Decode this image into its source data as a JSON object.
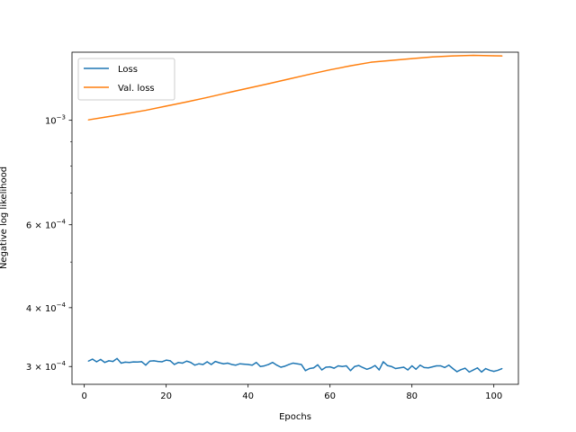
{
  "chart_data": {
    "type": "line",
    "title": "",
    "xlabel": "Epochs",
    "ylabel": "Negative log likelihood",
    "xlim": [
      -3,
      106
    ],
    "ylim": [
      0.000275,
      0.001395
    ],
    "yscale": "log",
    "grid": false,
    "legend_position": "top-left",
    "x_ticks": [
      0,
      20,
      40,
      60,
      80,
      100
    ],
    "x_tick_labels": [
      "0",
      "20",
      "40",
      "60",
      "80",
      "100"
    ],
    "y_major_ticks": [
      {
        "value": 0.0003,
        "mantissa": "3",
        "exponent": "−4"
      },
      {
        "value": 0.0004,
        "mantissa": "4",
        "exponent": "−4"
      },
      {
        "value": 0.0006,
        "mantissa": "6",
        "exponent": "−4"
      },
      {
        "value": 0.001,
        "base": "10",
        "exponent": "−3"
      }
    ],
    "y_minor_ticks": [
      0.0005,
      0.0007,
      0.0008,
      0.0009
    ],
    "series": [
      {
        "name": "Loss",
        "color": "#1f77b4",
        "x": [
          1,
          2,
          3,
          4,
          5,
          6,
          7,
          8,
          9,
          10,
          11,
          12,
          13,
          14,
          15,
          16,
          17,
          18,
          19,
          20,
          21,
          22,
          23,
          24,
          25,
          26,
          27,
          28,
          29,
          30,
          31,
          32,
          33,
          34,
          35,
          36,
          37,
          38,
          39,
          40,
          41,
          42,
          43,
          44,
          45,
          46,
          47,
          48,
          49,
          50,
          51,
          52,
          53,
          54,
          55,
          56,
          57,
          58,
          59,
          60,
          61,
          62,
          63,
          64,
          65,
          66,
          67,
          68,
          69,
          70,
          71,
          72,
          73,
          74,
          75,
          76,
          77,
          78,
          79,
          80,
          81,
          82,
          83,
          84,
          85,
          86,
          87,
          88,
          89,
          90,
          91,
          92,
          93,
          94,
          95,
          96,
          97,
          98,
          99,
          100,
          101,
          102
        ],
        "values": [
          0.000308,
          0.000311,
          0.000307,
          0.0003105,
          0.000306,
          0.0003085,
          0.0003075,
          0.000312,
          0.000305,
          0.0003065,
          0.000306,
          0.0003068,
          0.0003066,
          0.0003072,
          0.000302,
          0.000308,
          0.0003085,
          0.0003075,
          0.000307,
          0.0003095,
          0.0003085,
          0.000303,
          0.000306,
          0.000305,
          0.000308,
          0.000306,
          0.000302,
          0.000304,
          0.000303,
          0.000307,
          0.000303,
          0.0003075,
          0.0003055,
          0.000304,
          0.000305,
          0.000303,
          0.000302,
          0.000304,
          0.0003035,
          0.000303,
          0.000302,
          0.000306,
          0.0003,
          0.000301,
          0.000303,
          0.000306,
          0.000302,
          0.000299,
          0.0003005,
          0.000303,
          0.000305,
          0.000304,
          0.000303,
          0.000294,
          0.000297,
          0.000298,
          0.0003025,
          0.000295,
          0.000299,
          0.0002995,
          0.0002975,
          0.000301,
          0.0003,
          0.000301,
          0.000294,
          0.0003,
          0.0003015,
          0.0002985,
          0.000296,
          0.000298,
          0.0003015,
          0.000295,
          0.000307,
          0.0003015,
          0.0003,
          0.000297,
          0.000298,
          0.000299,
          0.000295,
          0.000301,
          0.000296,
          0.000302,
          0.0002985,
          0.000298,
          0.0002995,
          0.000301,
          0.000301,
          0.0002985,
          0.000302,
          0.000297,
          0.0002925,
          0.0002955,
          0.0002975,
          0.000292,
          0.000295,
          0.000298,
          0.000292,
          0.000297,
          0.0002945,
          0.000293,
          0.0002945,
          0.000297
        ]
      },
      {
        "name": "Val. loss",
        "color": "#ff7f0e",
        "x": [
          1,
          5,
          10,
          15,
          20,
          25,
          30,
          35,
          40,
          45,
          50,
          55,
          60,
          65,
          70,
          75,
          80,
          85,
          90,
          95,
          100,
          102
        ],
        "values": [
          0.001002,
          0.001015,
          0.001032,
          0.00105,
          0.001072,
          0.001094,
          0.001118,
          0.001144,
          0.00117,
          0.001196,
          0.001224,
          0.001252,
          0.00128,
          0.001305,
          0.001328,
          0.00134,
          0.001352,
          0.001363,
          0.00137,
          0.001374,
          0.001371,
          0.00137
        ]
      }
    ]
  }
}
